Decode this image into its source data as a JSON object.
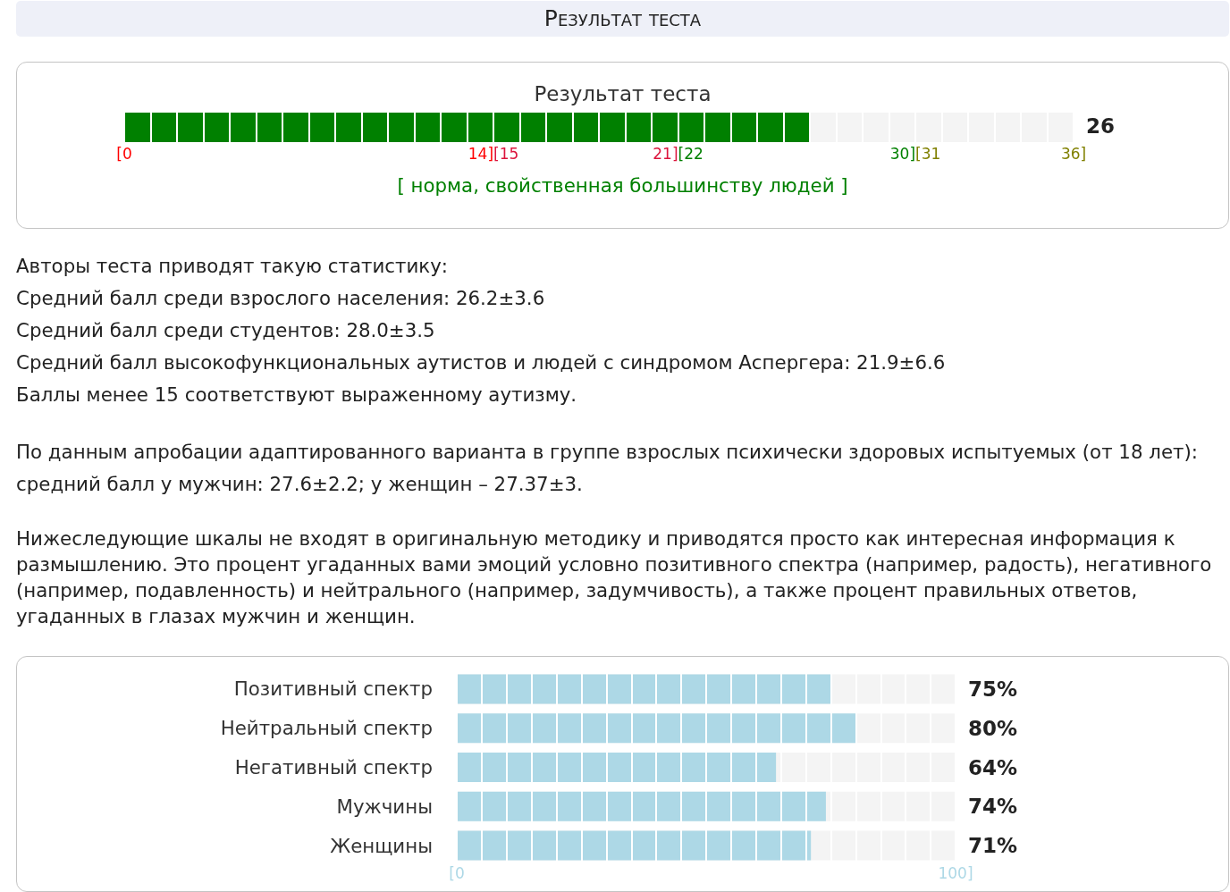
{
  "chart_data": [
    {
      "type": "other",
      "title": "Результат теста"
    },
    {
      "type": "bar",
      "orientation": "horizontal",
      "title": "Результат теста",
      "categories": [
        null
      ],
      "values": [
        26
      ],
      "color": "#008000",
      "xlim": [
        0,
        36
      ],
      "xticks": [
        {
          "value": 0,
          "label": "[0"
        },
        {
          "value": 1,
          "label": null
        },
        {
          "value": 2,
          "label": null
        },
        {
          "value": 3,
          "label": null
        },
        {
          "value": 4,
          "label": null
        },
        {
          "value": 5,
          "label": null
        },
        {
          "value": 6,
          "label": null
        },
        {
          "value": 7,
          "label": null
        },
        {
          "value": 8,
          "label": null
        },
        {
          "value": 9,
          "label": null
        },
        {
          "value": 10,
          "label": null
        },
        {
          "value": 11,
          "label": null
        },
        {
          "value": 12,
          "label": null
        },
        {
          "value": 13,
          "label": null
        },
        {
          "value": 14,
          "label": "14][15"
        },
        {
          "value": 15,
          "label": null
        },
        {
          "value": 16,
          "label": null
        },
        {
          "value": 17,
          "label": null
        },
        {
          "value": 18,
          "label": null
        },
        {
          "value": 19,
          "label": null
        },
        {
          "value": 20,
          "label": null
        },
        {
          "value": 21,
          "label": "21][22"
        },
        {
          "value": 22,
          "label": null
        },
        {
          "value": 23,
          "label": null
        },
        {
          "value": 24,
          "label": null
        },
        {
          "value": 25,
          "label": null
        },
        {
          "value": 26,
          "label": null
        },
        {
          "value": 27,
          "label": null
        },
        {
          "value": 28,
          "label": null
        },
        {
          "value": 29,
          "label": null
        },
        {
          "value": 30,
          "label": "30][31"
        },
        {
          "value": 31,
          "label": null
        },
        {
          "value": 32,
          "label": null
        },
        {
          "value": 33,
          "label": null
        },
        {
          "value": 34,
          "label": null
        },
        {
          "value": 35,
          "label": null
        },
        {
          "value": 36,
          "label": "36]"
        }
      ],
      "grid": "x",
      "annotations": [
        "26",
        "[ норма, свойственная большинству людей ]"
      ]
    },
    {
      "type": "other",
      "annotations": [
        "Авторы теста приводят такую статистику:\nСредний балл среди взрослого населения: 26.2±3.6\nСредний балл среди студентов: 28.0±3.5\nСредний балл высокофункциональных аутистов и людей с синдромом Аспергера: 21.9±6.6\nБаллы менее 15 соответствуют выраженному аутизму.",
        "По данным апробации адаптированного варианта в группе взрослых психически здоровых испытуемых (от 18 лет):\nсредний балл у мужчин: 27.6±2.2; у женщин – 27.37±3.",
        "Нижеследующие шкалы не входят в оригинальную методику и приводятся просто как интересная информация к размышлению. Это процент угаданных вами эмоций условно позитивного спектра (например, радость), негативного (например, подавленность) и нейтрального (например, задумчивость), а также процент правильных ответов, угаданных в глазах мужчин и женщин."
      ]
    },
    {
      "type": "bar",
      "orientation": "horizontal",
      "categories": [
        "Позитивный спектр",
        "Нейтральный спектр",
        "Негативный спектр",
        "Мужчины",
        "Женщины"
      ],
      "values": [
        75,
        80,
        64,
        74,
        71
      ],
      "value_labels": [
        "75%",
        "80%",
        "64%",
        "74%",
        "71%"
      ],
      "color": "#add8e6",
      "xlim": [
        0,
        100
      ],
      "xticks": [
        {
          "value": 0,
          "label": "[0"
        },
        {
          "value": 5,
          "label": null
        },
        {
          "value": 10,
          "label": null
        },
        {
          "value": 15,
          "label": null
        },
        {
          "value": 20,
          "label": null
        },
        {
          "value": 25,
          "label": null
        },
        {
          "value": 30,
          "label": null
        },
        {
          "value": 35,
          "label": null
        },
        {
          "value": 40,
          "label": null
        },
        {
          "value": 45,
          "label": null
        },
        {
          "value": 50,
          "label": null
        },
        {
          "value": 55,
          "label": null
        },
        {
          "value": 60,
          "label": null
        },
        {
          "value": 65,
          "label": null
        },
        {
          "value": 70,
          "label": null
        },
        {
          "value": 75,
          "label": null
        },
        {
          "value": 80,
          "label": null
        },
        {
          "value": 85,
          "label": null
        },
        {
          "value": 90,
          "label": null
        },
        {
          "value": 95,
          "label": null
        },
        {
          "value": 100,
          "label": "100]"
        }
      ],
      "grid": "x"
    }
  ]
}
